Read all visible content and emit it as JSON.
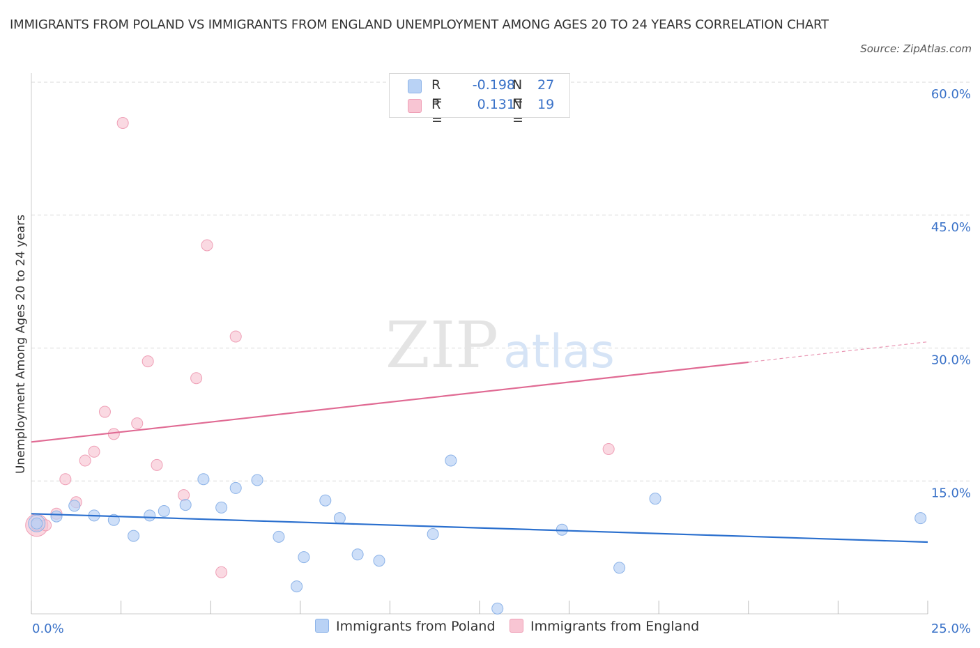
{
  "title": "IMMIGRANTS FROM POLAND VS IMMIGRANTS FROM ENGLAND UNEMPLOYMENT AMONG AGES 20 TO 24 YEARS CORRELATION CHART",
  "source": "Source: ZipAtlas.com",
  "watermark": {
    "zip": "ZIP",
    "atlas": "atlas"
  },
  "legend": {
    "r_label": "R =",
    "n_label": "N =",
    "poland": {
      "r": "-0.198",
      "n": "27"
    },
    "england": {
      "r": "0.131",
      "n": "19"
    }
  },
  "colors": {
    "poland_fill": "#b9d2f5",
    "poland_stroke": "#8cb3e8",
    "poland_line": "#2a6fce",
    "england_fill": "#f8c5d3",
    "england_stroke": "#ef9fb6",
    "england_line": "#e06a93",
    "axis_text": "#3a72c8",
    "grid": "#d9d9d9"
  },
  "chart_data": {
    "type": "scatter",
    "title": "IMMIGRANTS FROM POLAND VS IMMIGRANTS FROM ENGLAND UNEMPLOYMENT AMONG AGES 20 TO 24 YEARS CORRELATION CHART",
    "xlabel": "",
    "ylabel": "Unemployment Among Ages 20 to 24 years",
    "xlim": [
      0,
      25
    ],
    "ylim": [
      0,
      60
    ],
    "x_tick_labels": [
      "0.0%",
      "25.0%"
    ],
    "y_tick_labels": [
      "15.0%",
      "30.0%",
      "45.0%",
      "60.0%"
    ],
    "y_ticks": [
      15,
      30,
      45,
      60
    ],
    "series": [
      {
        "name": "Immigrants from Poland",
        "points": [
          [
            0.15,
            10.2
          ],
          [
            0.7,
            11.0
          ],
          [
            1.2,
            12.2
          ],
          [
            1.75,
            11.1
          ],
          [
            2.3,
            10.6
          ],
          [
            2.85,
            8.8
          ],
          [
            3.3,
            11.1
          ],
          [
            3.7,
            11.6
          ],
          [
            4.3,
            12.3
          ],
          [
            4.8,
            15.2
          ],
          [
            5.3,
            12.0
          ],
          [
            5.7,
            14.2
          ],
          [
            6.3,
            15.1
          ],
          [
            6.9,
            8.7
          ],
          [
            7.6,
            6.4
          ],
          [
            7.4,
            3.1
          ],
          [
            8.2,
            12.8
          ],
          [
            8.6,
            10.8
          ],
          [
            9.1,
            6.7
          ],
          [
            9.7,
            6.0
          ],
          [
            11.2,
            9.0
          ],
          [
            11.7,
            17.3
          ],
          [
            13.0,
            0.6
          ],
          [
            14.8,
            9.5
          ],
          [
            16.4,
            5.2
          ],
          [
            17.4,
            13.0
          ],
          [
            24.8,
            10.8
          ]
        ],
        "trend": {
          "x": [
            0,
            25
          ],
          "y": [
            11.3,
            8.1
          ]
        }
      },
      {
        "name": "Immigrants from England",
        "points": [
          [
            0.15,
            10.0
          ],
          [
            0.4,
            10.0
          ],
          [
            0.7,
            11.3
          ],
          [
            0.95,
            15.2
          ],
          [
            1.25,
            12.6
          ],
          [
            1.5,
            17.3
          ],
          [
            1.75,
            18.3
          ],
          [
            2.05,
            22.8
          ],
          [
            2.3,
            20.3
          ],
          [
            2.55,
            55.4
          ],
          [
            2.95,
            21.5
          ],
          [
            3.25,
            28.5
          ],
          [
            3.5,
            16.8
          ],
          [
            4.25,
            13.4
          ],
          [
            4.6,
            26.6
          ],
          [
            4.9,
            41.6
          ],
          [
            5.3,
            4.7
          ],
          [
            5.7,
            31.3
          ],
          [
            16.1,
            18.6
          ]
        ],
        "trend": {
          "x": [
            0,
            20
          ],
          "y": [
            19.4,
            28.4
          ]
        },
        "trend_dashed": {
          "x": [
            20,
            25
          ],
          "y": [
            28.4,
            30.7
          ]
        }
      }
    ]
  },
  "bottom_legend": {
    "poland": "Immigrants from Poland",
    "england": "Immigrants from England"
  }
}
